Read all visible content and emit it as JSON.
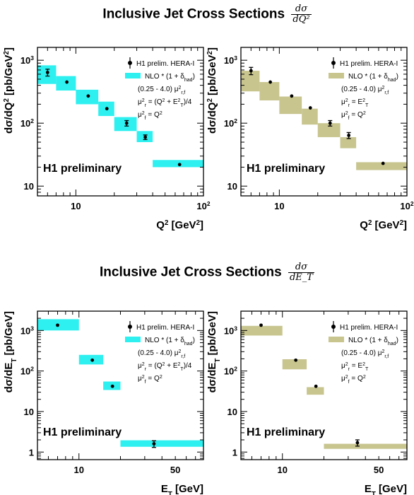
{
  "titles": [
    {
      "text": "Inclusive Jet Cross Sections",
      "frac_num": "dσ",
      "frac_den": "dQ²"
    },
    {
      "text": "Inclusive Jet Cross Sections",
      "frac_num": "dσ",
      "frac_den": "dE_T"
    }
  ],
  "colors": {
    "cyan": "#2ef0f0",
    "olive": "#c8c58f",
    "frame": "#000000",
    "marker": "#000000"
  },
  "chart_data": [
    {
      "type": "scatter",
      "panel": "top-left",
      "xlabel": "Q² [GeV²]",
      "ylabel": "dσ/dQ² [pb/GeV²]",
      "x_scale": "log",
      "y_scale": "log",
      "xlim": [
        5,
        100
      ],
      "ylim": [
        7,
        1600
      ],
      "x_tick_labels": [
        "10",
        "10²"
      ],
      "y_tick_labels": [
        "10",
        "10²",
        "10³"
      ],
      "watermark": "H1 preliminary",
      "legend": {
        "position": "top-right",
        "data_label": "H1 prelim. HERA-I",
        "band_label": "NLO * (1 + δhad)",
        "lines": [
          "(0.25 - 4.0) μ²r,f",
          "μ²r = (Q² + E²T)/4",
          "μ²f = Q²"
        ]
      },
      "band_color": "cyan",
      "points": [
        {
          "x": 6,
          "y": 640,
          "err": 80
        },
        {
          "x": 8.5,
          "y": 450,
          "err": 0
        },
        {
          "x": 12.5,
          "y": 270,
          "err": 0
        },
        {
          "x": 17.5,
          "y": 170,
          "err": 0
        },
        {
          "x": 25,
          "y": 100,
          "err": 10
        },
        {
          "x": 35,
          "y": 60,
          "err": 5
        },
        {
          "x": 65,
          "y": 22,
          "err": 0
        }
      ],
      "bands": [
        {
          "x0": 5,
          "x1": 7,
          "lo": 420,
          "hi": 830
        },
        {
          "x0": 7,
          "x1": 10,
          "lo": 330,
          "hi": 560
        },
        {
          "x0": 10,
          "x1": 15,
          "lo": 200,
          "hi": 340
        },
        {
          "x0": 15,
          "x1": 20,
          "lo": 130,
          "hi": 220
        },
        {
          "x0": 20,
          "x1": 30,
          "lo": 75,
          "hi": 125
        },
        {
          "x0": 30,
          "x1": 40,
          "lo": 50,
          "hi": 75
        },
        {
          "x0": 40,
          "x1": 100,
          "lo": 20,
          "hi": 26
        }
      ]
    },
    {
      "type": "scatter",
      "panel": "top-right",
      "xlabel": "Q² [GeV²]",
      "ylabel": "dσ/dQ² [pb/GeV²]",
      "x_scale": "log",
      "y_scale": "log",
      "xlim": [
        5,
        100
      ],
      "ylim": [
        7,
        1600
      ],
      "x_tick_labels": [
        "10",
        "10²"
      ],
      "y_tick_labels": [
        "10",
        "10²",
        "10³"
      ],
      "watermark": "H1 preliminary",
      "legend": {
        "position": "top-right",
        "data_label": "H1 prelim. HERA-I",
        "band_label": "NLO * (1 + δhad)",
        "lines": [
          "(0.25 - 4.0) μ²r,f",
          "μ²r = E²T",
          "μ²f = Q²"
        ]
      },
      "band_color": "olive",
      "points": [
        {
          "x": 6,
          "y": 680,
          "err": 90
        },
        {
          "x": 8.5,
          "y": 450,
          "err": 0
        },
        {
          "x": 12.5,
          "y": 270,
          "err": 0
        },
        {
          "x": 17.5,
          "y": 175,
          "err": 0
        },
        {
          "x": 25,
          "y": 100,
          "err": 10
        },
        {
          "x": 35,
          "y": 64,
          "err": 7
        },
        {
          "x": 65,
          "y": 23,
          "err": 0
        }
      ],
      "bands": [
        {
          "x0": 5,
          "x1": 7,
          "lo": 320,
          "hi": 680
        },
        {
          "x0": 7,
          "x1": 10,
          "lo": 230,
          "hi": 450
        },
        {
          "x0": 10,
          "x1": 15,
          "lo": 140,
          "hi": 265
        },
        {
          "x0": 15,
          "x1": 20,
          "lo": 95,
          "hi": 170
        },
        {
          "x0": 20,
          "x1": 30,
          "lo": 60,
          "hi": 100
        },
        {
          "x0": 30,
          "x1": 40,
          "lo": 40,
          "hi": 60
        },
        {
          "x0": 40,
          "x1": 100,
          "lo": 18,
          "hi": 24
        }
      ]
    },
    {
      "type": "scatter",
      "panel": "bottom-left",
      "xlabel": "E_T [GeV]",
      "ylabel": "dσ/dE_T [pb/GeV]",
      "x_scale": "log",
      "y_scale": "log",
      "xlim": [
        5,
        80
      ],
      "ylim": [
        0.65,
        3000
      ],
      "x_tick_labels": [
        "10",
        "50"
      ],
      "y_tick_labels": [
        "1",
        "10",
        "10²",
        "10³"
      ],
      "watermark": "H1 preliminary",
      "legend": {
        "position": "top-right",
        "data_label": "H1 prelim. HERA-I",
        "band_label": "NLO * (1 + δhad)",
        "lines": [
          "(0.25 - 4.0) μ²r,f",
          "μ²r = (Q² + E²T)/4",
          "μ²f = Q²"
        ]
      },
      "band_color": "cyan",
      "points": [
        {
          "x": 7,
          "y": 1350,
          "err": 0
        },
        {
          "x": 12.5,
          "y": 185,
          "err": 0
        },
        {
          "x": 17.5,
          "y": 42,
          "err": 0
        },
        {
          "x": 35,
          "y": 1.6,
          "err": 0.3
        }
      ],
      "bands": [
        {
          "x0": 5,
          "x1": 10,
          "lo": 1000,
          "hi": 1900
        },
        {
          "x0": 10,
          "x1": 15,
          "lo": 145,
          "hi": 250
        },
        {
          "x0": 15,
          "x1": 20,
          "lo": 34,
          "hi": 55
        },
        {
          "x0": 20,
          "x1": 80,
          "lo": 1.35,
          "hi": 1.95
        }
      ]
    },
    {
      "type": "scatter",
      "panel": "bottom-right",
      "xlabel": "E_T [GeV]",
      "ylabel": "dσ/dE_T [pb/GeV]",
      "x_scale": "log",
      "y_scale": "log",
      "xlim": [
        5,
        80
      ],
      "ylim": [
        0.65,
        3000
      ],
      "x_tick_labels": [
        "10",
        "50"
      ],
      "y_tick_labels": [
        "1",
        "10",
        "10²",
        "10³"
      ],
      "watermark": "H1 preliminary",
      "legend": {
        "position": "top-right",
        "data_label": "H1 prelim. HERA-I",
        "band_label": "NLO * (1 + δhad)",
        "lines": [
          "(0.25 - 4.0) μ²r,f",
          "μ²r = E²T",
          "μ²f = Q²"
        ]
      },
      "band_color": "olive",
      "points": [
        {
          "x": 7,
          "y": 1350,
          "err": 0
        },
        {
          "x": 12.5,
          "y": 185,
          "err": 0
        },
        {
          "x": 17.5,
          "y": 42,
          "err": 0
        },
        {
          "x": 35,
          "y": 1.7,
          "err": 0.3
        }
      ],
      "bands": [
        {
          "x0": 5,
          "x1": 10,
          "lo": 750,
          "hi": 1300
        },
        {
          "x0": 10,
          "x1": 15,
          "lo": 110,
          "hi": 195
        },
        {
          "x0": 15,
          "x1": 20,
          "lo": 26,
          "hi": 40
        },
        {
          "x0": 20,
          "x1": 80,
          "lo": 1.2,
          "hi": 1.6
        }
      ]
    }
  ]
}
